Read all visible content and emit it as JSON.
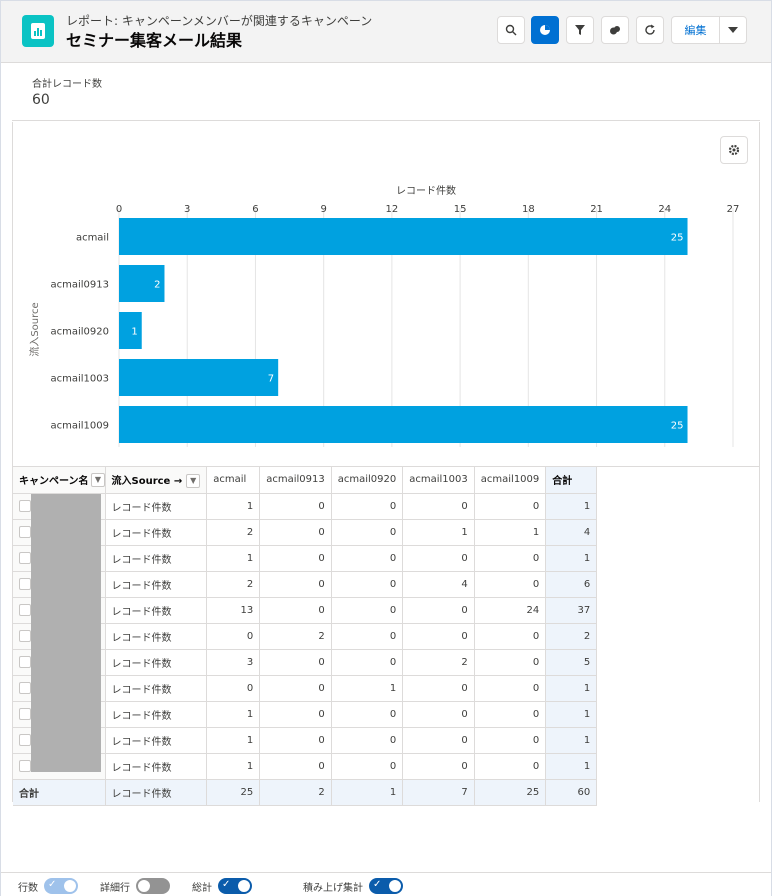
{
  "header": {
    "subtitle": "レポート: キャンペーンメンバーが関連するキャンペーン",
    "title": "セミナー集客メール結果",
    "edit_label": "編集",
    "icons": [
      "search-icon",
      "chart-icon",
      "filter-icon",
      "subscribe-icon",
      "refresh-icon",
      "chevron-down-icon"
    ]
  },
  "summary": {
    "label": "合計レコード数",
    "value": "60"
  },
  "chart_data": {
    "type": "bar",
    "orientation": "horizontal",
    "title": "",
    "xlabel": "レコード件数",
    "ylabel": "流入Source",
    "categories": [
      "acmail",
      "acmail0913",
      "acmail0920",
      "acmail1003",
      "acmail1009"
    ],
    "values": [
      25,
      2,
      1,
      7,
      25
    ],
    "xlim": [
      0,
      27
    ],
    "xticks": [
      0,
      3,
      6,
      9,
      12,
      15,
      18,
      21,
      24,
      27
    ],
    "grid": true,
    "bar_color": "#00a1e0"
  },
  "table": {
    "group_header": "キャンペーン名",
    "source_header": "流入Source",
    "columns": [
      "acmail",
      "acmail0913",
      "acmail0920",
      "acmail1003",
      "acmail1009"
    ],
    "total_header": "合計",
    "row_label": "レコード件数",
    "rows": [
      [
        1,
        0,
        0,
        0,
        0,
        1
      ],
      [
        2,
        0,
        0,
        1,
        1,
        4
      ],
      [
        1,
        0,
        0,
        0,
        0,
        1
      ],
      [
        2,
        0,
        0,
        4,
        0,
        6
      ],
      [
        13,
        0,
        0,
        0,
        24,
        37
      ],
      [
        0,
        2,
        0,
        0,
        0,
        2
      ],
      [
        3,
        0,
        0,
        2,
        0,
        5
      ],
      [
        0,
        0,
        1,
        0,
        0,
        1
      ],
      [
        1,
        0,
        0,
        0,
        0,
        1
      ],
      [
        1,
        0,
        0,
        0,
        0,
        1
      ],
      [
        1,
        0,
        0,
        0,
        0,
        1
      ]
    ],
    "total_row_label": "合計",
    "total_row": [
      25,
      2,
      1,
      7,
      25,
      60
    ]
  },
  "footer": {
    "row_count_label": "行数",
    "detail_rows_label": "詳細行",
    "grand_total_label": "総計",
    "stacked_summary_label": "積み上げ集計",
    "row_count_state": "on-disabled",
    "detail_rows_state": "off",
    "grand_total_state": "on",
    "stacked_summary_state": "on"
  }
}
